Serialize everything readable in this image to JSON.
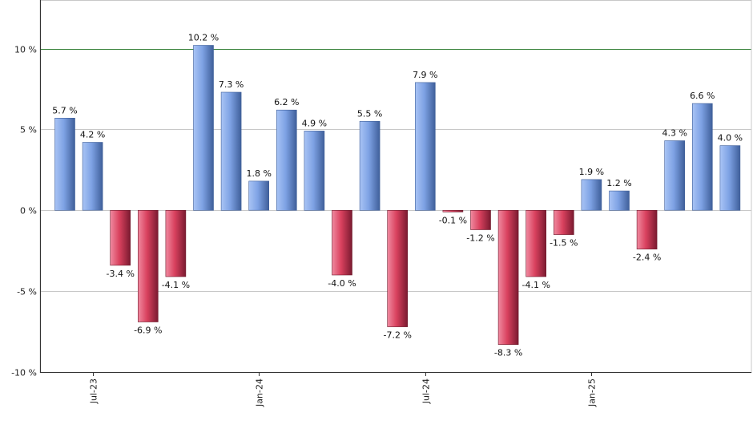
{
  "chart_data": {
    "type": "bar",
    "title": "",
    "xlabel": "",
    "ylabel": "",
    "ylim": [
      -10,
      13
    ],
    "y_ticks": [
      {
        "value": -10,
        "label": "-10 %"
      },
      {
        "value": -5,
        "label": "-5 %"
      },
      {
        "value": 0,
        "label": "0 %"
      },
      {
        "value": 5,
        "label": "5 %"
      },
      {
        "value": 10,
        "label": "10 %"
      }
    ],
    "x_ticks": [
      {
        "index": 1,
        "label": "Jul-23"
      },
      {
        "index": 7,
        "label": "Jan-24"
      },
      {
        "index": 13,
        "label": "Jul-24"
      },
      {
        "index": 19,
        "label": "Jan-25"
      }
    ],
    "reference_line": {
      "value": 10,
      "color": "#2e7d32"
    },
    "grid": true,
    "legend": "none",
    "values": [
      5.7,
      4.2,
      -3.4,
      -6.9,
      -4.1,
      10.2,
      7.3,
      1.8,
      6.2,
      4.9,
      -4.0,
      5.5,
      -7.2,
      7.9,
      -0.1,
      -1.2,
      -8.3,
      -4.1,
      -1.5,
      1.9,
      1.2,
      -2.4,
      4.3,
      6.6,
      4.0
    ],
    "labels": [
      "5.7 %",
      "4.2 %",
      "-3.4 %",
      "-6.9 %",
      "-4.1 %",
      "10.2 %",
      "7.3 %",
      "1.8 %",
      "6.2 %",
      "4.9 %",
      "-4.0 %",
      "5.5 %",
      "-7.2 %",
      "7.9 %",
      "-0.1 %",
      "-1.2 %",
      "-8.3 %",
      "-4.1 %",
      "-1.5 %",
      "1.9 %",
      "1.2 %",
      "-2.4 %",
      "4.3 %",
      "6.6 %",
      "4.0 %"
    ],
    "colors": {
      "positive_light": "#a9c4f5",
      "positive_mid": "#7ea2e4",
      "positive_dark": "#3f5f9a",
      "negative_light": "#f08aa0",
      "negative_mid": "#d9415e",
      "negative_dark": "#7a1a30"
    }
  }
}
